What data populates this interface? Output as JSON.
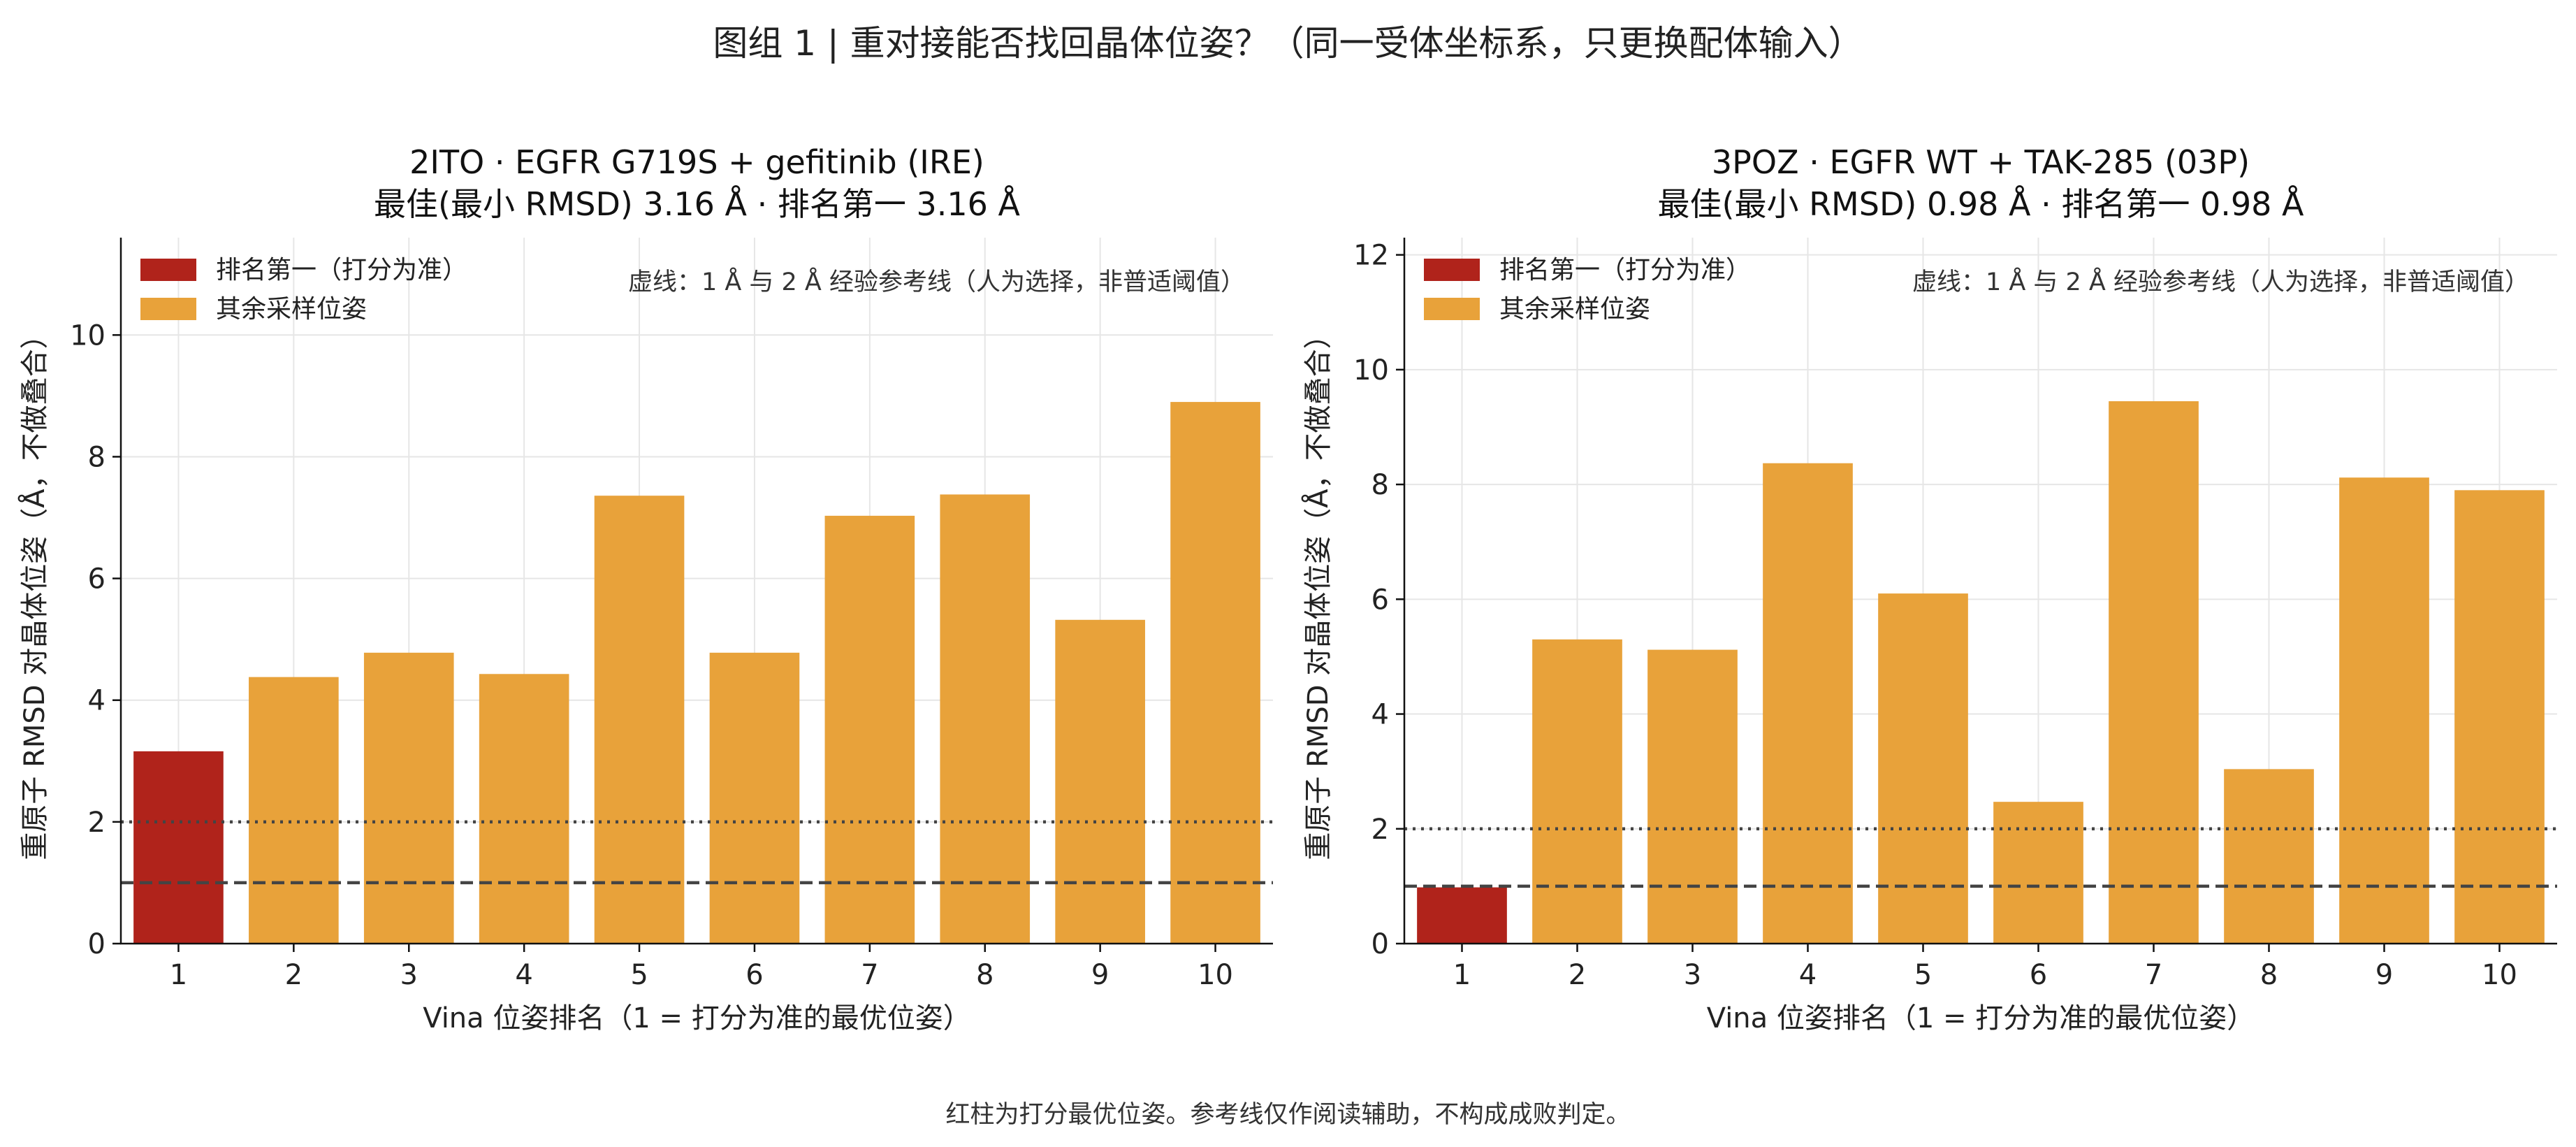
{
  "figure": {
    "title": "图组 1 | 重对接能否找回晶体位姿？（同一受体坐标系，只更换配体输入）",
    "footer": "红柱为打分最优位姿。参考线仅作阅读辅助，不构成成败判定。"
  },
  "colors": {
    "top_ranked": "#b0231b",
    "other": "#e8a23a",
    "ref_line": "#444444",
    "grid": "#e6e6e6"
  },
  "chart_data": [
    {
      "type": "bar",
      "title": "2ITO · EGFR G719S + gefitinib (IRE)",
      "subtitle": "最佳(最小 RMSD) 3.16 Å   ·   排名第一 3.16 Å",
      "xlabel": "Vina 位姿排名（1 = 打分为准的最优位姿）",
      "ylabel": "重原子 RMSD 对晶体位姿（Å，不做叠合）",
      "categories": [
        "1",
        "2",
        "3",
        "4",
        "5",
        "6",
        "7",
        "8",
        "9",
        "10"
      ],
      "values": [
        3.16,
        4.38,
        4.78,
        4.43,
        7.36,
        4.78,
        7.03,
        7.38,
        5.32,
        8.9
      ],
      "highlight_index": 0,
      "ylim": [
        0,
        11.6
      ],
      "yticks": [
        "0",
        "2",
        "4",
        "6",
        "8",
        "10"
      ],
      "reference_lines": [
        1,
        2
      ],
      "reference_note": "虚线：1 Å 与 2 Å 经验参考线（人为选择，非普适阈值）",
      "legend": [
        "排名第一（打分为准）",
        "其余采样位姿"
      ],
      "legend_position": "top-left",
      "grid": true
    },
    {
      "type": "bar",
      "title": "3POZ · EGFR WT + TAK-285 (03P)",
      "subtitle": "最佳(最小 RMSD) 0.98 Å   ·   排名第一 0.98 Å",
      "xlabel": "Vina 位姿排名（1 = 打分为准的最优位姿）",
      "ylabel": "重原子 RMSD 对晶体位姿（Å，不做叠合）",
      "categories": [
        "1",
        "2",
        "3",
        "4",
        "5",
        "6",
        "7",
        "8",
        "9",
        "10"
      ],
      "values": [
        0.98,
        5.3,
        5.12,
        8.37,
        6.1,
        2.47,
        9.45,
        3.04,
        8.12,
        7.9
      ],
      "highlight_index": 0,
      "ylim": [
        0,
        12.3
      ],
      "yticks": [
        "0",
        "2",
        "4",
        "6",
        "8",
        "10",
        "12"
      ],
      "reference_lines": [
        1,
        2
      ],
      "reference_note": "虚线：1 Å 与 2 Å 经验参考线（人为选择，非普适阈值）",
      "legend": [
        "排名第一（打分为准）",
        "其余采样位姿"
      ],
      "legend_position": "top-left",
      "grid": true
    }
  ]
}
